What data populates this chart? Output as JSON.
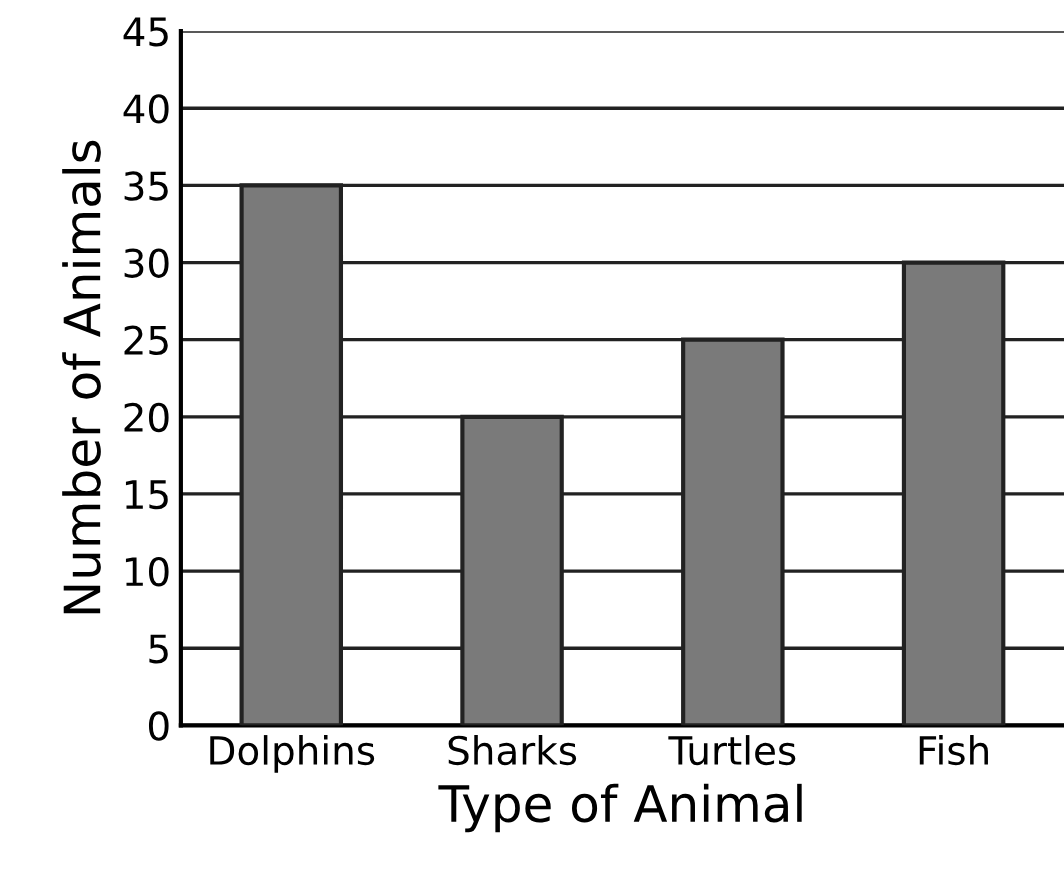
{
  "chart_data": {
    "type": "bar",
    "xlabel": "Type of Animal",
    "ylabel": "Number of Animals",
    "categories": [
      "Dolphins",
      "Sharks",
      "Turtles",
      "Fish"
    ],
    "values": [
      35,
      20,
      25,
      30
    ],
    "color": "#7a7a7a",
    "ylim": [
      0,
      45
    ],
    "yticks": [
      0,
      5,
      10,
      15,
      20,
      25,
      30,
      35,
      40,
      45
    ],
    "grid": "y"
  }
}
